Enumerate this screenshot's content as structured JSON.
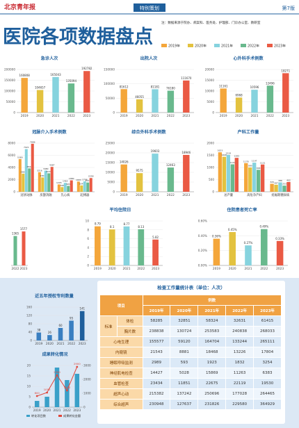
{
  "header": {
    "logo": "北京青年报",
    "section": "特别策划",
    "page": "第7版"
  },
  "title": "医院各项数据盘点",
  "note": "注：数据来源于院办、病案科、医务处、护理部、门诊办公室、教研室",
  "legend": {
    "series": [
      {
        "name": "2019年",
        "color": "#f4a63a"
      },
      {
        "name": "2020年",
        "color": "#e3c23f"
      },
      {
        "name": "2021年",
        "color": "#86d3de"
      },
      {
        "name": "2022年",
        "color": "#69b98d"
      },
      {
        "name": "2023年",
        "color": "#ea5a44"
      }
    ]
  },
  "chart_data": [
    {
      "type": "bar",
      "title": "急诊人次",
      "categories": [
        "2019",
        "2020",
        "2021",
        "2022",
        "2023"
      ],
      "values": [
        160808,
        104657,
        165043,
        135094,
        192782
      ],
      "colors": [
        "#f4a63a",
        "#e3c23f",
        "#86d3de",
        "#69b98d",
        "#ea5a44"
      ],
      "ylim": [
        0,
        200000
      ],
      "yticks": [
        0,
        50000,
        100000,
        150000,
        200000
      ]
    },
    {
      "type": "bar",
      "title": "出院人次",
      "categories": [
        "2019",
        "2020",
        "2021",
        "2022",
        "2023"
      ],
      "values": [
        81612,
        46055,
        81181,
        76180,
        111670
      ],
      "colors": [
        "#f4a63a",
        "#e3c23f",
        "#86d3de",
        "#69b98d",
        "#ea5a44"
      ],
      "ylim": [
        0,
        150000
      ],
      "yticks": [
        0,
        50000,
        100000,
        150000
      ]
    },
    {
      "type": "bar",
      "title": "心外科手术例数",
      "categories": [
        "2019",
        "2020",
        "2021",
        "2022",
        "2023"
      ],
      "values": [
        11161,
        6968,
        10596,
        12496,
        18271
      ],
      "colors": [
        "#f4a63a",
        "#e3c23f",
        "#86d3de",
        "#69b98d",
        "#ea5a44"
      ],
      "ylim": [
        0,
        20000
      ],
      "yticks": [
        0,
        5000,
        10000,
        15000,
        20000
      ]
    },
    {
      "type": "grouped",
      "title": "冠脉介入手术例数",
      "categories": [
        "冠状动脉",
        "房颤消融",
        "先心病",
        "起搏器"
      ],
      "series": [
        {
          "name": "2019年",
          "color": "#f4a63a",
          "values": [
            5380,
            3216,
            1205,
            1683
          ]
        },
        {
          "name": "2020年",
          "color": "#e3c23f",
          "values": [
            2980,
            2360,
            768,
            1044
          ]
        },
        {
          "name": "2021年",
          "color": "#86d3de",
          "values": [
            7021,
            3480,
            1463,
            1708
          ]
        },
        {
          "name": "2022年",
          "color": "#69b98d",
          "values": [
            3842,
            3036,
            969,
            1521
          ]
        },
        {
          "name": "2023年",
          "color": "#ea5a44",
          "values": [
            7896,
            4087,
            1880,
            2258
          ]
        }
      ],
      "ylim": [
        0,
        8000
      ],
      "yticks": [
        0,
        2000,
        4000,
        6000,
        8000
      ]
    },
    {
      "type": "bar",
      "title": "综合外科手术例数",
      "categories": [
        "2019",
        "2020",
        "2021",
        "2022",
        "2023"
      ],
      "values": [
        14026,
        9575,
        19603,
        12463,
        18946
      ],
      "colors": [
        "#f4a63a",
        "#e3c23f",
        "#86d3de",
        "#69b98d",
        "#ea5a44"
      ],
      "ylim": [
        0,
        25000
      ],
      "yticks": [
        0,
        5000,
        10000,
        15000,
        20000,
        25000
      ]
    },
    {
      "type": "grouped",
      "title": "产科工作量",
      "categories": [
        "总产量",
        "高危孕产妇",
        "妊娠期糖尿病"
      ],
      "series": [
        {
          "name": "2019年",
          "color": "#f4a63a",
          "values": [
            1623,
            1178,
            329
          ]
        },
        {
          "name": "2020年",
          "color": "#e3c23f",
          "values": [
            1440,
            999,
            287
          ]
        },
        {
          "name": "2021年",
          "color": "#86d3de",
          "values": [
            1519,
            1197,
            386
          ]
        },
        {
          "name": "2022年",
          "color": "#69b98d",
          "values": [
            1129,
            904,
            253
          ]
        },
        {
          "name": "2023年",
          "color": "#ea5a44",
          "values": [
            1395,
            1121,
            402
          ]
        }
      ],
      "ylim": [
        0,
        2000
      ],
      "yticks": [
        0,
        500,
        1000,
        1500,
        2000
      ]
    },
    {
      "type": "bar",
      "categories": [
        "2022",
        "2023"
      ],
      "values": [
        1365,
        1577
      ],
      "colors": [
        "#69b98d",
        "#ea5a44"
      ],
      "ylim": [
        0,
        2000
      ],
      "yticks": []
    },
    {
      "type": "bar",
      "title": "平均住院日",
      "categories": [
        "2019",
        "2020",
        "2021",
        "2022",
        "2023"
      ],
      "values": [
        8.79,
        8.1,
        8.77,
        8.13,
        5.82
      ],
      "colors": [
        "#f4a63a",
        "#e3c23f",
        "#86d3de",
        "#69b98d",
        "#ea5a44"
      ],
      "ylim": [
        0,
        10
      ],
      "yticks": [
        0,
        2,
        4,
        6,
        8,
        10
      ]
    },
    {
      "type": "bar",
      "title": "住院患者死亡率",
      "categories": [
        "2019",
        "2020",
        "2021",
        "2022",
        "2023"
      ],
      "values": [
        0.36,
        0.45,
        0.27,
        0.49,
        0.33
      ],
      "value_labels": [
        "0.36%",
        "0.45%",
        "0.27%",
        "0.49%",
        "0.33%"
      ],
      "colors": [
        "#f4a63a",
        "#e3c23f",
        "#86d3de",
        "#69b98d",
        "#ea5a44"
      ],
      "ylim": [
        0,
        0.6
      ],
      "yticks": [
        {
          "value": 0,
          "label": "0.00%"
        },
        {
          "value": 0.2,
          "label": "0.20%"
        },
        {
          "value": 0.4,
          "label": "0.40%"
        },
        {
          "value": 0.6,
          "label": "0.60%"
        }
      ]
    },
    {
      "type": "bar",
      "title": "近五年授权专利数量",
      "categories": [
        "2019",
        "2020",
        "2021",
        "2022",
        "2023"
      ],
      "values": [
        38,
        26,
        60,
        95,
        141
      ],
      "colors": [
        "#3a7fc1",
        "#3a7fc1",
        "#3a7fc1",
        "#3a7fc1",
        "#1f5f9c"
      ],
      "ylim": [
        0,
        160
      ],
      "yticks": [
        0,
        40,
        80,
        120,
        160
      ]
    },
    {
      "type": "combo",
      "title": "成果转化情况",
      "categories": [
        "2019",
        "2020",
        "2021",
        "2022",
        "2023"
      ],
      "series": [
        {
          "name": "转化项目数",
          "color": "#3aa0c8",
          "values": [
            3,
            5,
            19,
            13,
            16
          ]
        },
        {
          "name": "成果转化金额",
          "color": "#e0463a",
          "values": [
            800,
            1050,
            2300,
            1200,
            2900
          ],
          "axis": "y2"
        }
      ],
      "ylim": [
        0,
        20
      ],
      "yticks": [
        0,
        5,
        10,
        15,
        20
      ],
      "y2lim": [
        0,
        3000
      ],
      "y2ticks": [
        0,
        1000,
        2000,
        3000
      ]
    }
  ],
  "table": {
    "title": "检查工作量统计表（单位：人次）",
    "head": [
      "项目",
      "例数"
    ],
    "years": [
      "2019年",
      "2020年",
      "2021年",
      "2022年",
      "2023年"
    ],
    "group_label": "标准",
    "grouped_rows": [
      {
        "label": "体检",
        "values": [
          58285,
          32851,
          58324,
          32631,
          61415
        ]
      },
      {
        "label": "胸片数",
        "values": [
          238838,
          130724,
          253583,
          240838,
          268033
        ]
      }
    ],
    "rows": [
      {
        "label": "心电生理",
        "values": [
          155577,
          59120,
          164704,
          133244,
          265111
        ]
      },
      {
        "label": "内窥镜",
        "values": [
          21543,
          8881,
          18468,
          13226,
          17804
        ]
      },
      {
        "label": "睡眠呼吸监测",
        "values": [
          2989,
          593,
          1923,
          1832,
          3254
        ]
      },
      {
        "label": "神经肌电检查",
        "values": [
          14427,
          5028,
          15869,
          11263,
          6383
        ]
      },
      {
        "label": "血管检查",
        "values": [
          23434,
          11851,
          22675,
          22119,
          19530
        ]
      },
      {
        "label": "超声心动",
        "values": [
          215382,
          137242,
          250696,
          177028,
          264465
        ]
      },
      {
        "label": "综合超声",
        "values": [
          230948,
          127637,
          231826,
          229580,
          364929
        ]
      }
    ]
  }
}
